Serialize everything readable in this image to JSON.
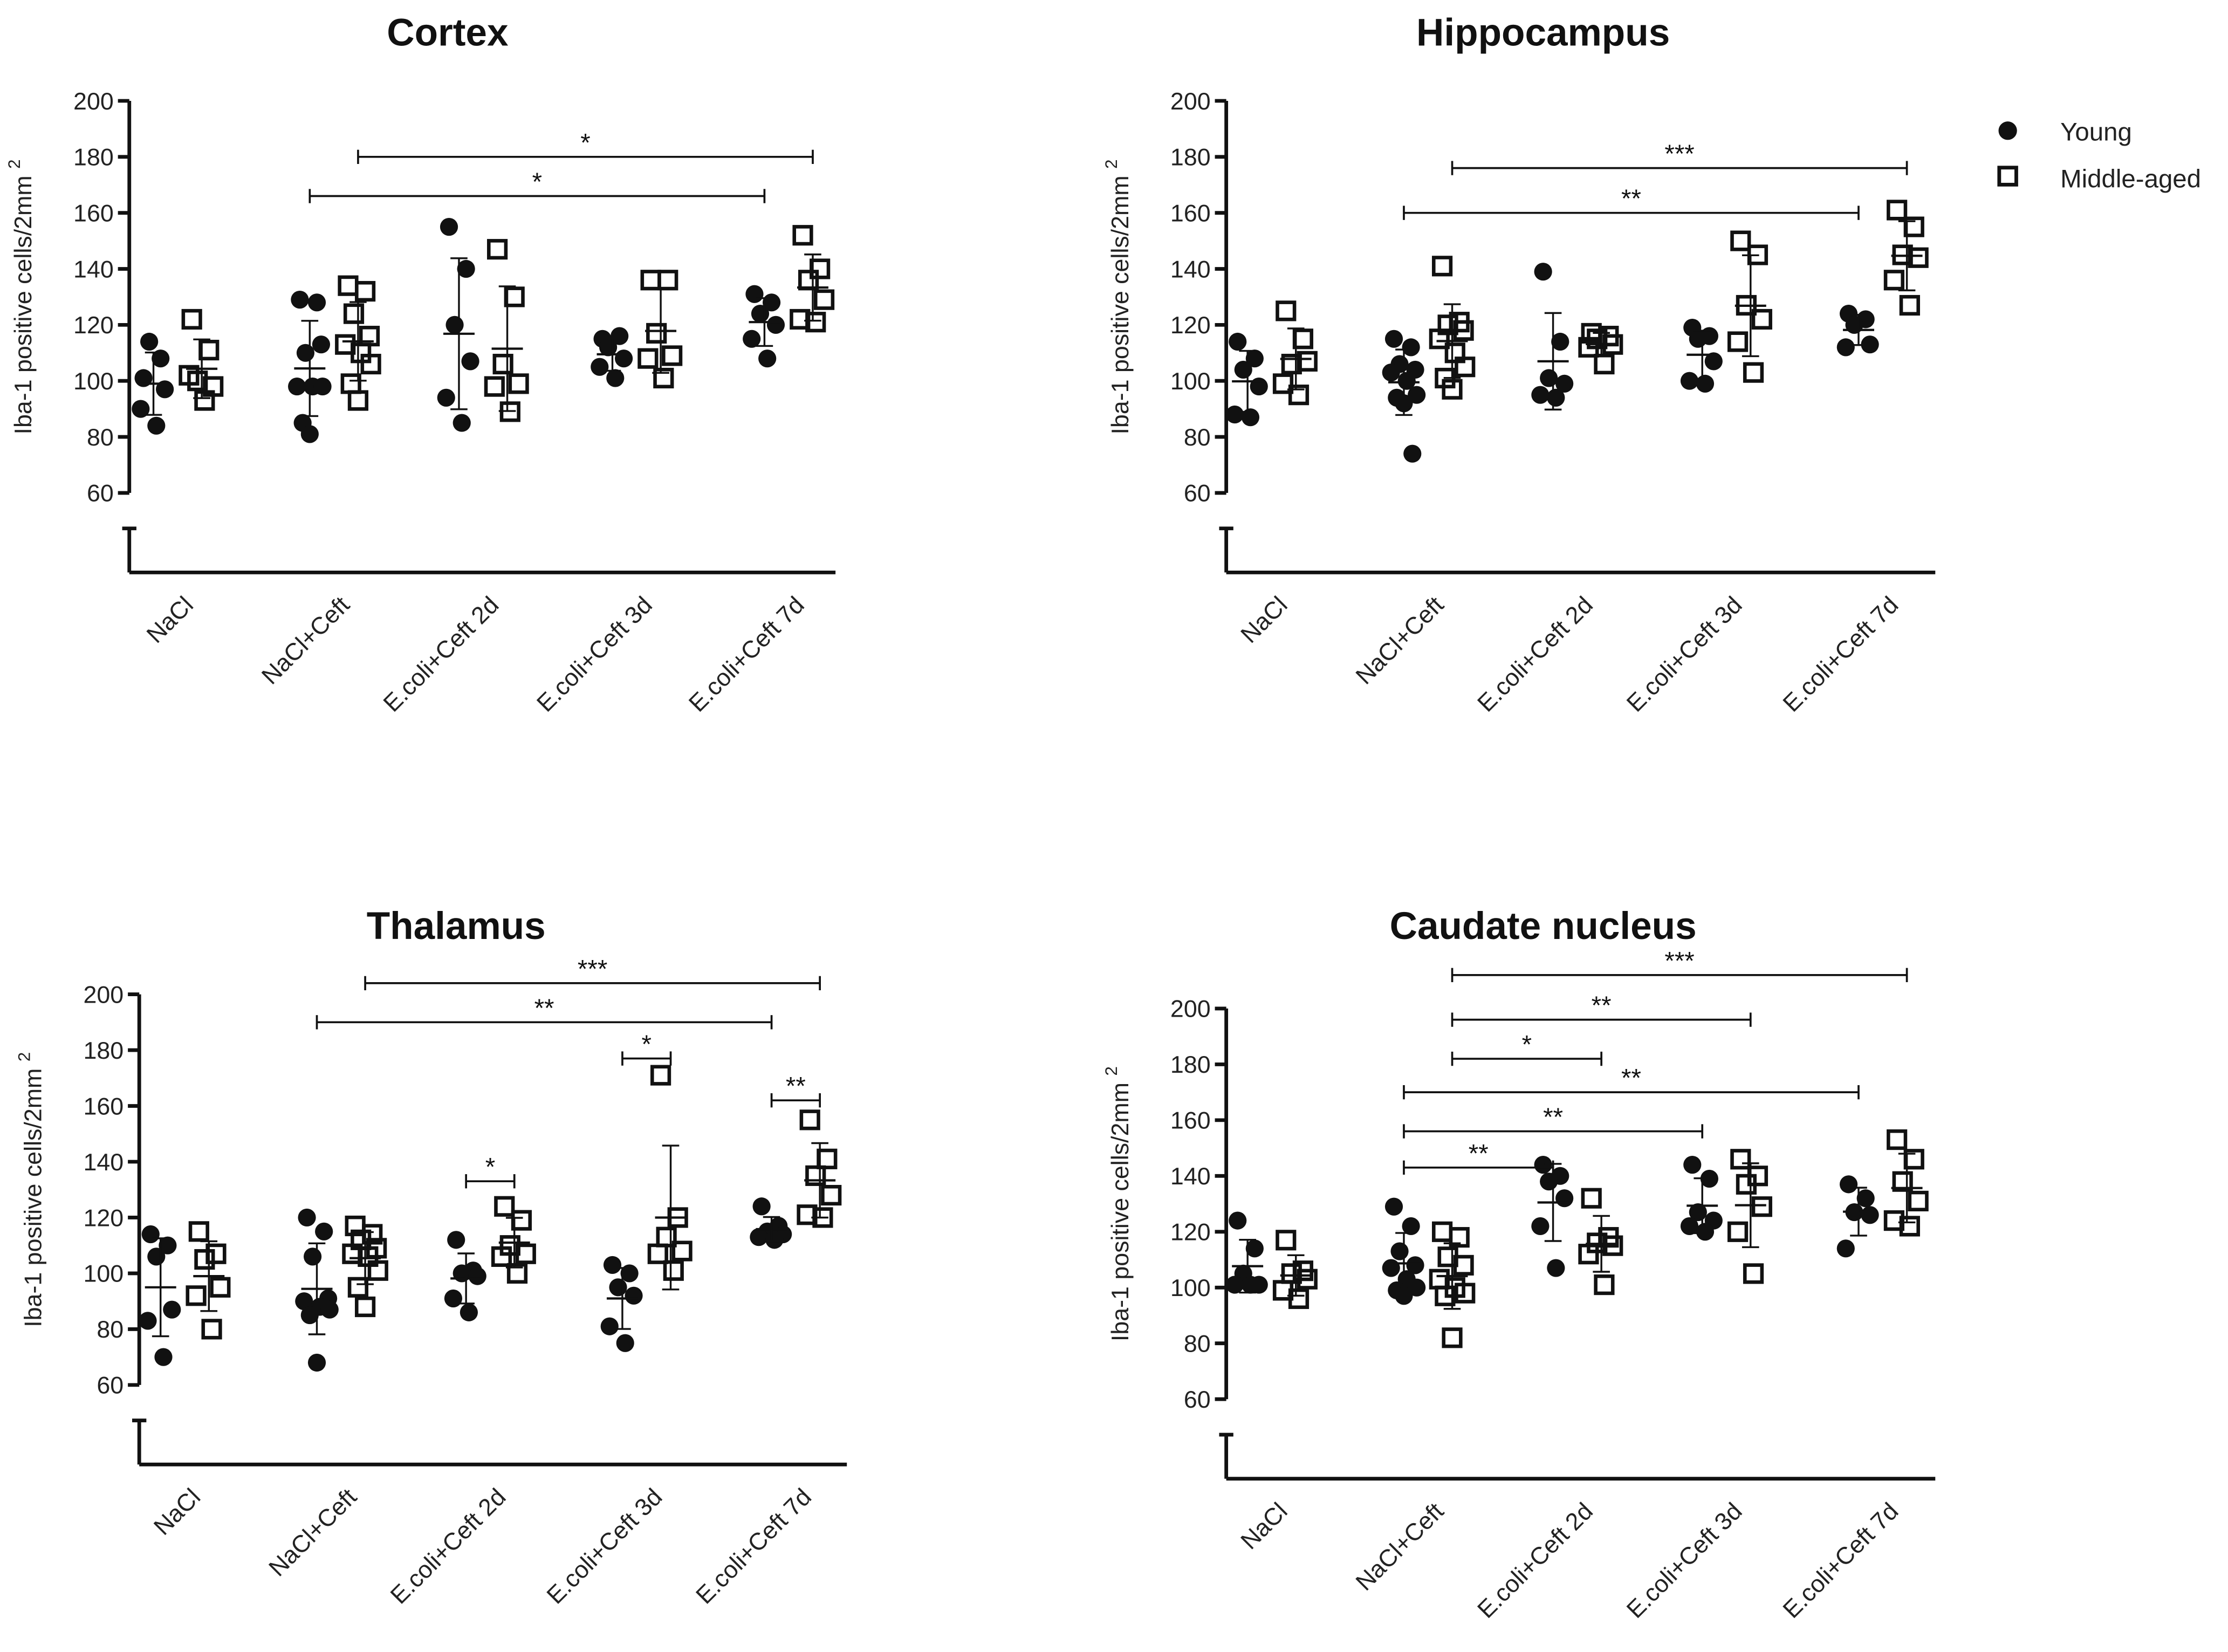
{
  "chart_data": [
    {
      "type": "scatter",
      "title": "Cortex",
      "ylabel": "Iba-1 positive cells/2mm",
      "ylabel_superscript": "2",
      "ylim": [
        60,
        200
      ],
      "yticks": [
        60,
        80,
        100,
        120,
        140,
        160,
        180,
        200
      ],
      "categories": [
        "NaCl",
        "NaCl+Ceft",
        "E.coli+Ceft 2d",
        "E.coli+Ceft 3d",
        "E.coli+Ceft 7d"
      ],
      "series": [
        {
          "name": "Young",
          "values": [
            [
              101,
              108,
              114,
              97,
              90,
              84
            ],
            [
              129,
              128,
              110,
              113,
              98,
              98,
              98,
              85,
              81
            ],
            [
              155,
              140,
              120,
              107,
              94,
              85
            ],
            [
              115,
              116,
              112,
              108,
              105,
              101
            ],
            [
              131,
              128,
              124,
              120,
              115,
              108
            ]
          ]
        },
        {
          "name": "Middle-aged",
          "values": [
            [
              122,
              111,
              100,
              98,
              102,
              93
            ],
            [
              134,
              132,
              124,
              116,
              113,
              110,
              106,
              99,
              93
            ],
            [
              147,
              130,
              106,
              99,
              98,
              89
            ],
            [
              136,
              136,
              117,
              109,
              108,
              101
            ],
            [
              152,
              140,
              136,
              129,
              122,
              121
            ]
          ]
        }
      ],
      "comparisons": [
        {
          "from": [
            1,
            "Middle-aged"
          ],
          "to": [
            4,
            "Middle-aged"
          ],
          "label": "*",
          "y": 180
        },
        {
          "from": [
            1,
            "Young"
          ],
          "to": [
            4,
            "Young"
          ],
          "label": "*",
          "y": 166
        }
      ]
    },
    {
      "type": "scatter",
      "title": "Hippocampus",
      "ylabel": "Iba-1 positive cells/2mm",
      "ylabel_superscript": "2",
      "ylim": [
        60,
        200
      ],
      "yticks": [
        60,
        80,
        100,
        120,
        140,
        160,
        180,
        200
      ],
      "categories": [
        "NaCl",
        "NaCl+Ceft",
        "E.coli+Ceft 2d",
        "E.coli+Ceft 3d",
        "E.coli+Ceft 7d"
      ],
      "series": [
        {
          "name": "Young",
          "values": [
            [
              114,
              108,
              104,
              98,
              88,
              87
            ],
            [
              115,
              112,
              106,
              104,
              103,
              100,
              95,
              94,
              92,
              74
            ],
            [
              139,
              114,
              101,
              99,
              95,
              94
            ],
            [
              119,
              116,
              115,
              107,
              100,
              99
            ],
            [
              124,
              122,
              120,
              113,
              112
            ]
          ]
        },
        {
          "name": "Middle-aged",
          "values": [
            [
              125,
              115,
              106,
              107,
              99,
              95
            ],
            [
              141,
              121,
              120,
              118,
              115,
              110,
              105,
              101,
              97
            ],
            [
              117,
              116,
              115,
              113,
              112,
              106
            ],
            [
              150,
              145,
              127,
              122,
              114,
              103
            ],
            [
              161,
              155,
              145,
              144,
              136,
              127
            ]
          ]
        }
      ],
      "comparisons": [
        {
          "from": [
            1,
            "Middle-aged"
          ],
          "to": [
            4,
            "Middle-aged"
          ],
          "label": "***",
          "y": 176
        },
        {
          "from": [
            1,
            "Young"
          ],
          "to": [
            4,
            "Young"
          ],
          "label": "**",
          "y": 160
        }
      ]
    },
    {
      "type": "scatter",
      "title": "Thalamus",
      "ylabel": "Iba-1 positive cells/2mm",
      "ylabel_superscript": "2",
      "ylim": [
        60,
        200
      ],
      "yticks": [
        60,
        80,
        100,
        120,
        140,
        160,
        180,
        200
      ],
      "categories": [
        "NaCl",
        "NaCl+Ceft",
        "E.coli+Ceft 2d",
        "E.coli+Ceft 3d",
        "E.coli+Ceft 7d"
      ],
      "series": [
        {
          "name": "Young",
          "values": [
            [
              114,
              110,
              106,
              87,
              83,
              70
            ],
            [
              120,
              115,
              106,
              91,
              90,
              88,
              87,
              85,
              68
            ],
            [
              112,
              101,
              100,
              99,
              91,
              86
            ],
            [
              103,
              100,
              95,
              92,
              81,
              75
            ],
            [
              124,
              117,
              115,
              114,
              113,
              112
            ]
          ]
        },
        {
          "name": "Middle-aged",
          "values": [
            [
              115,
              107,
              105,
              95,
              92,
              80
            ],
            [
              117,
              114,
              112,
              109,
              107,
              106,
              101,
              95,
              88
            ],
            [
              124,
              119,
              110,
              107,
              106,
              100
            ],
            [
              171,
              120,
              113,
              108,
              107,
              101
            ],
            [
              155,
              141,
              135,
              128,
              121,
              120
            ]
          ]
        }
      ],
      "comparisons": [
        {
          "from": [
            1,
            "Middle-aged"
          ],
          "to": [
            4,
            "Middle-aged"
          ],
          "label": "***",
          "y": 204
        },
        {
          "from": [
            1,
            "Young"
          ],
          "to": [
            4,
            "Young"
          ],
          "label": "**",
          "y": 190
        },
        {
          "from": [
            3,
            "Young"
          ],
          "to": [
            3,
            "Middle-aged"
          ],
          "label": "*",
          "y": 177
        },
        {
          "from": [
            4,
            "Young"
          ],
          "to": [
            4,
            "Middle-aged"
          ],
          "label": "**",
          "y": 162
        },
        {
          "from": [
            2,
            "Young"
          ],
          "to": [
            2,
            "Middle-aged"
          ],
          "label": "*",
          "y": 133
        }
      ]
    },
    {
      "type": "scatter",
      "title": "Caudate nucleus",
      "ylabel": "Iba-1 positive cells/2mm",
      "ylabel_superscript": "2",
      "ylim": [
        60,
        200
      ],
      "yticks": [
        60,
        80,
        100,
        120,
        140,
        160,
        180,
        200
      ],
      "categories": [
        "NaCl",
        "NaCl+Ceft",
        "E.coli+Ceft 2d",
        "E.coli+Ceft 3d",
        "E.coli+Ceft 7d"
      ],
      "series": [
        {
          "name": "Young",
          "values": [
            [
              124,
              114,
              105,
              101,
              101,
              101
            ],
            [
              129,
              122,
              113,
              108,
              107,
              103,
              100,
              99,
              97
            ],
            [
              144,
              140,
              138,
              132,
              122,
              107
            ],
            [
              144,
              139,
              127,
              124,
              122,
              120
            ],
            [
              137,
              132,
              127,
              126,
              114
            ]
          ]
        },
        {
          "name": "Middle-aged",
          "values": [
            [
              117,
              106,
              105,
              103,
              99,
              96
            ],
            [
              120,
              118,
              111,
              108,
              103,
              100,
              98,
              97,
              82
            ],
            [
              132,
              118,
              116,
              115,
              112,
              101
            ],
            [
              146,
              140,
              137,
              129,
              120,
              105
            ],
            [
              153,
              146,
              138,
              131,
              124,
              122
            ]
          ]
        }
      ],
      "comparisons": [
        {
          "from": [
            1,
            "Middle-aged"
          ],
          "to": [
            4,
            "Middle-aged"
          ],
          "label": "***",
          "y": 212
        },
        {
          "from": [
            1,
            "Middle-aged"
          ],
          "to": [
            3,
            "Middle-aged"
          ],
          "label": "**",
          "y": 196
        },
        {
          "from": [
            1,
            "Middle-aged"
          ],
          "to": [
            2,
            "Middle-aged"
          ],
          "label": "*",
          "y": 182
        },
        {
          "from": [
            1,
            "Young"
          ],
          "to": [
            4,
            "Young"
          ],
          "label": "**",
          "y": 170
        },
        {
          "from": [
            1,
            "Young"
          ],
          "to": [
            3,
            "Young"
          ],
          "label": "**",
          "y": 156
        },
        {
          "from": [
            1,
            "Young"
          ],
          "to": [
            2,
            "Young"
          ],
          "label": "**",
          "y": 143
        }
      ]
    }
  ],
  "legend": {
    "position": "top-right",
    "items": [
      {
        "label": "Young",
        "marker": "filled-circle"
      },
      {
        "label": "Middle-aged",
        "marker": "open-square"
      }
    ]
  },
  "colors": {
    "ink": "#111111",
    "background": "#ffffff"
  }
}
